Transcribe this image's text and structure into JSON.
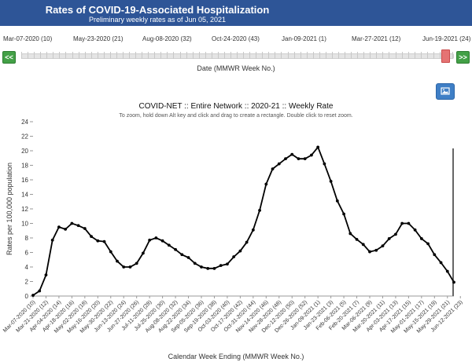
{
  "header": {
    "title": "Rates of COVID-19-Associated Hospitalization",
    "subtitle": "Preliminary weekly rates as of Jun 05, 2021",
    "bg_color": "#2e5597"
  },
  "slider": {
    "labels": [
      "Mar-07-2020 (10)",
      "May-23-2020 (21)",
      "Aug-08-2020 (32)",
      "Oct-24-2020 (43)",
      "Jan-09-2021 (1)",
      "Mar-27-2021 (12)",
      "Jun-19-2021 (24)"
    ],
    "prev_label": "<<",
    "next_label": ">>",
    "caption": "Date (MMWR Week No.)",
    "handle_color": "#e57373",
    "button_color": "#43a047"
  },
  "image_button": {
    "icon": "image-icon",
    "color": "#3f7fc6"
  },
  "chart_data": {
    "type": "line",
    "title": "COVID-NET :: Entire Network :: 2020-21 :: Weekly Rate",
    "subtitle": "To zoom, hold down Alt key and click and drag to create a rectangle. Double click to reset zoom.",
    "xlabel": "Calendar Week Ending (MMWR Week No.)",
    "ylabel": "Rates per 100,000 population",
    "ylim": [
      0,
      24
    ],
    "yticks": [
      0,
      2,
      4,
      6,
      8,
      10,
      12,
      14,
      16,
      18,
      20,
      22,
      24
    ],
    "grid": false,
    "line_color": "#000000",
    "x_tick_labels": [
      "Mar-07-2020 (10)",
      "Mar-21-2020 (12)",
      "Apr-04-2020 (14)",
      "Apr-18-2020 (16)",
      "May-02-2020 (18)",
      "May-16-2020 (20)",
      "May-30-2020 (22)",
      "Jun-13-2020 (24)",
      "Jun-27-2020 (26)",
      "Jul-11-2020 (28)",
      "Jul-25-2020 (30)",
      "Aug-08-2020 (32)",
      "Aug-22-2020 (34)",
      "Sep-05-2020 (36)",
      "Sep-19-2020 (38)",
      "Oct-03-2020 (40)",
      "Oct-17-2020 (42)",
      "Oct-31-2020 (44)",
      "Nov-14-2020 (46)",
      "Nov-28-2020 (48)",
      "Dec-12-2020 (50)",
      "Dec-26-2020 (52)",
      "Jan-09-2021 (1)",
      "Jan-23-2021 (3)",
      "Feb-06-2021 (5)",
      "Feb-20-2021 (7)",
      "Mar-06-2021 (9)",
      "Mar-20-2021 (11)",
      "Apr-03-2021 (13)",
      "Apr-17-2021 (15)",
      "May-01-2021 (17)",
      "May-15-2021 (19)",
      "May-29-2021 (21)",
      "Jun-12-2021 (23)"
    ],
    "series": [
      {
        "values": [
          0.1,
          0.7,
          2.9,
          7.7,
          9.5,
          9.2,
          10.0,
          9.7,
          9.3,
          8.2,
          7.6,
          7.5,
          6.1,
          4.8,
          4.0,
          4.0,
          4.5,
          5.9,
          7.7,
          8.0,
          7.6,
          7.0,
          6.4,
          5.7,
          5.3,
          4.5,
          4.0,
          3.8,
          3.8,
          4.2,
          4.4,
          5.4,
          6.2,
          7.4,
          9.1,
          11.8,
          15.4,
          17.5,
          18.2,
          18.9,
          19.5,
          18.9,
          18.9,
          19.4,
          20.5,
          18.2,
          15.8,
          13.1,
          11.3,
          8.6,
          7.8,
          7.1,
          6.1,
          6.3,
          6.9,
          7.9,
          8.5,
          10.0,
          10.0,
          9.1,
          7.9,
          7.2,
          5.7,
          4.6,
          3.4,
          1.9
        ]
      }
    ]
  }
}
